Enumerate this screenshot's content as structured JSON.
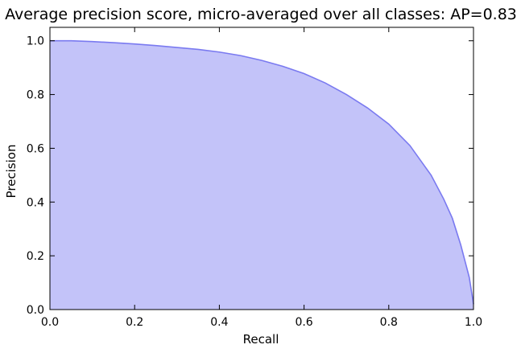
{
  "chart_data": {
    "type": "area",
    "title": "Average precision score, micro-averaged over all classes: AP=0.83",
    "xlabel": "Recall",
    "ylabel": "Precision",
    "xlim": [
      0.0,
      1.0
    ],
    "ylim": [
      0.0,
      1.05
    ],
    "xticks": [
      "0.0",
      "0.2",
      "0.4",
      "0.6",
      "0.8",
      "1.0"
    ],
    "yticks": [
      "0.0",
      "0.2",
      "0.4",
      "0.6",
      "0.8",
      "1.0"
    ],
    "grid": false,
    "legend": "none",
    "fill_color": "#c3c3f9",
    "line_color": "#7a7af0",
    "series": [
      {
        "x": [
          0.0,
          0.05,
          0.1,
          0.15,
          0.2,
          0.25,
          0.3,
          0.35,
          0.4,
          0.45,
          0.5,
          0.55,
          0.6,
          0.65,
          0.7,
          0.75,
          0.8,
          0.85,
          0.9,
          0.93,
          0.95,
          0.97,
          0.98,
          0.99,
          1.0
        ],
        "y": [
          1.0,
          1.0,
          0.997,
          0.993,
          0.988,
          0.982,
          0.975,
          0.968,
          0.958,
          0.945,
          0.927,
          0.905,
          0.878,
          0.843,
          0.8,
          0.75,
          0.69,
          0.61,
          0.5,
          0.41,
          0.34,
          0.24,
          0.18,
          0.12,
          0.02
        ]
      }
    ]
  }
}
